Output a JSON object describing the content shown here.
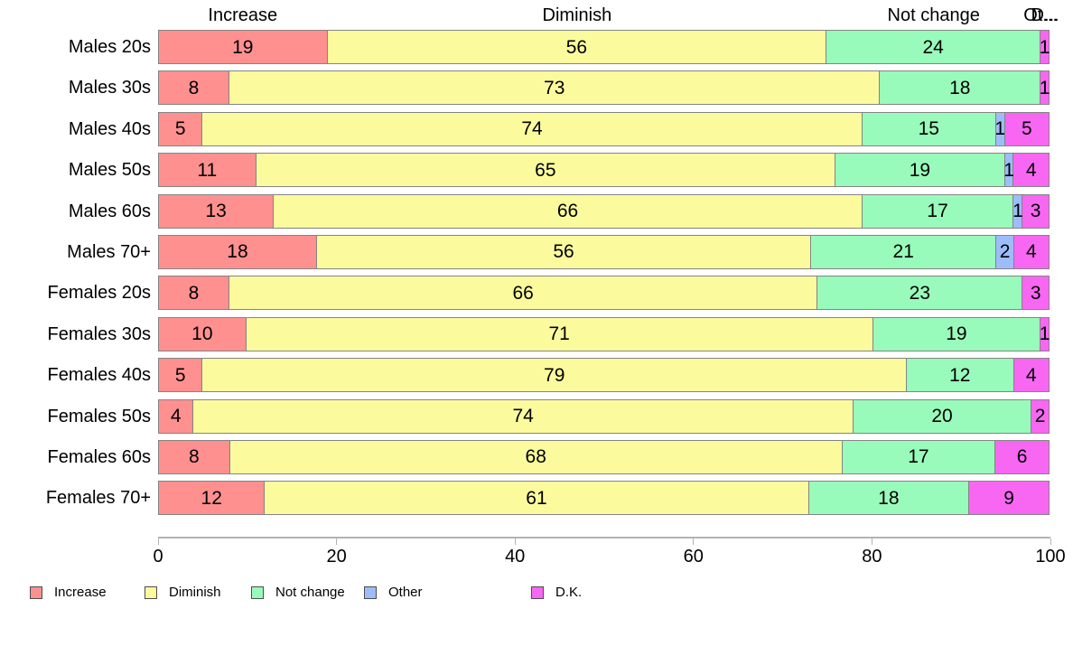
{
  "chart_data": {
    "type": "bar",
    "orientation": "horizontal",
    "stacked": true,
    "stacked_to_100_percent": true,
    "categories": [
      "Males 20s",
      "Males 30s",
      "Males 40s",
      "Males 50s",
      "Males 60s",
      "Males 70+",
      "Females 20s",
      "Females 30s",
      "Females 40s",
      "Females 50s",
      "Females 60s",
      "Females 70+"
    ],
    "series": [
      {
        "name": "Increase",
        "color": "#FF9090",
        "values": [
          19,
          8,
          5,
          11,
          13,
          18,
          8,
          10,
          5,
          4,
          8,
          12
        ]
      },
      {
        "name": "Diminish",
        "color": "#FBFB9E",
        "values": [
          56,
          73,
          74,
          65,
          66,
          56,
          66,
          71,
          79,
          74,
          68,
          61
        ]
      },
      {
        "name": "Not change",
        "color": "#99FBBB",
        "values": [
          24,
          18,
          15,
          19,
          17,
          21,
          23,
          19,
          12,
          20,
          17,
          18
        ]
      },
      {
        "name": "Other",
        "color": "#9CBDF9",
        "values": [
          0,
          0,
          1,
          1,
          1,
          2,
          0,
          0,
          0,
          0,
          0,
          0
        ]
      },
      {
        "name": "D.K.",
        "color": "#F767F2",
        "values": [
          1,
          1,
          5,
          4,
          3,
          4,
          3,
          1,
          4,
          2,
          6,
          9
        ]
      }
    ],
    "column_headers": [
      "Increase",
      "Diminish",
      "Not change",
      "Ot...",
      "D..."
    ],
    "x_axis": {
      "range": [
        0,
        100
      ],
      "ticks": [
        0,
        20,
        40,
        60,
        80,
        100
      ],
      "grid": false
    },
    "legend": {
      "position": "bottom",
      "labels": [
        "Increase",
        "Diminish",
        "Not change",
        "Other",
        "D.K."
      ]
    },
    "axis_color": "#b3b3b3",
    "segment_border_color": "#848484"
  }
}
